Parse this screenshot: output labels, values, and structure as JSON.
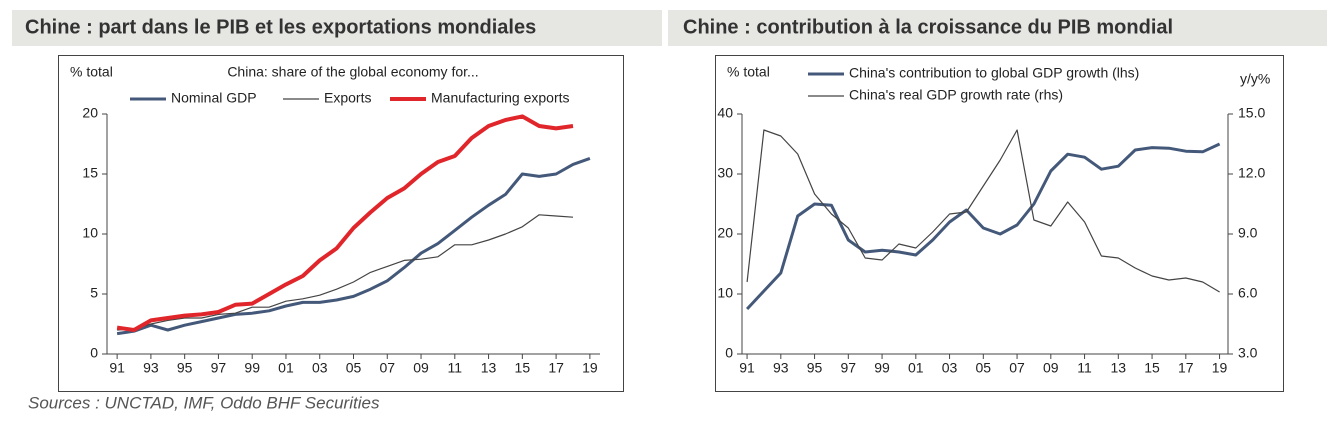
{
  "chart_data": [
    {
      "type": "line",
      "title": "Chine : part dans le PIB et les exportations mondiales",
      "subtitle": "China: share of the global economy for...",
      "y_label": "% total",
      "x": [
        1991,
        1992,
        1993,
        1994,
        1995,
        1996,
        1997,
        1998,
        1999,
        2000,
        2001,
        2002,
        2003,
        2004,
        2005,
        2006,
        2007,
        2008,
        2009,
        2010,
        2011,
        2012,
        2013,
        2014,
        2015,
        2016,
        2017,
        2018,
        2019
      ],
      "xlim": [
        1990.4,
        2019.6
      ],
      "xticks": [
        {
          "value": 1991,
          "label": "91"
        },
        {
          "value": 1993,
          "label": "93"
        },
        {
          "value": 1995,
          "label": "95"
        },
        {
          "value": 1997,
          "label": "97"
        },
        {
          "value": 1999,
          "label": "99"
        },
        {
          "value": 2001,
          "label": "01"
        },
        {
          "value": 2003,
          "label": "03"
        },
        {
          "value": 2005,
          "label": "05"
        },
        {
          "value": 2007,
          "label": "07"
        },
        {
          "value": 2009,
          "label": "09"
        },
        {
          "value": 2011,
          "label": "11"
        },
        {
          "value": 2013,
          "label": "13"
        },
        {
          "value": 2015,
          "label": "15"
        },
        {
          "value": 2017,
          "label": "17"
        },
        {
          "value": 2019,
          "label": "19"
        }
      ],
      "ylim": [
        0,
        20
      ],
      "yticks": [
        0,
        5,
        10,
        15,
        20
      ],
      "series": [
        {
          "name": "Nominal GDP",
          "color": "#44597a",
          "width": 3,
          "values": [
            1.7,
            1.9,
            2.4,
            2.0,
            2.4,
            2.7,
            3.0,
            3.3,
            3.4,
            3.6,
            4.0,
            4.3,
            4.3,
            4.5,
            4.8,
            5.4,
            6.1,
            7.2,
            8.4,
            9.2,
            10.3,
            11.4,
            12.4,
            13.3,
            15.0,
            14.8,
            15.0,
            15.8,
            16.3
          ]
        },
        {
          "name": "Exports",
          "color": "#444444",
          "width": 1.2,
          "values": [
            2.0,
            2.1,
            2.5,
            2.8,
            3.0,
            3.0,
            3.3,
            3.4,
            3.9,
            3.9,
            4.4,
            4.6,
            4.9,
            5.4,
            6.0,
            6.8,
            7.3,
            7.8,
            7.9,
            8.1,
            9.1,
            9.1,
            9.5,
            10.0,
            10.6,
            11.6,
            11.5,
            11.4,
            null
          ]
        },
        {
          "name": "Manufacturing exports",
          "color": "#e0262b",
          "width": 4,
          "values": [
            2.2,
            2.0,
            2.8,
            3.0,
            3.2,
            3.3,
            3.5,
            4.1,
            4.2,
            5.0,
            5.8,
            6.5,
            7.8,
            8.8,
            10.5,
            11.8,
            13.0,
            13.8,
            15.0,
            16.0,
            16.5,
            18.0,
            19.0,
            19.5,
            19.8,
            19.0,
            18.8,
            19.0,
            null
          ]
        }
      ]
    },
    {
      "type": "line",
      "title": "Chine : contribution à la croissance du PIB mondial",
      "y_label": "% total",
      "y2_label": "y/y%",
      "x": [
        1991,
        1992,
        1993,
        1994,
        1995,
        1996,
        1997,
        1998,
        1999,
        2000,
        2001,
        2002,
        2003,
        2004,
        2005,
        2006,
        2007,
        2008,
        2009,
        2010,
        2011,
        2012,
        2013,
        2014,
        2015,
        2016,
        2017,
        2018,
        2019
      ],
      "xlim": [
        1990.7,
        2019.5
      ],
      "xticks": [
        {
          "value": 1991,
          "label": "91"
        },
        {
          "value": 1993,
          "label": "93"
        },
        {
          "value": 1995,
          "label": "95"
        },
        {
          "value": 1997,
          "label": "97"
        },
        {
          "value": 1999,
          "label": "99"
        },
        {
          "value": 2001,
          "label": "01"
        },
        {
          "value": 2003,
          "label": "03"
        },
        {
          "value": 2005,
          "label": "05"
        },
        {
          "value": 2007,
          "label": "07"
        },
        {
          "value": 2009,
          "label": "09"
        },
        {
          "value": 2011,
          "label": "11"
        },
        {
          "value": 2013,
          "label": "13"
        },
        {
          "value": 2015,
          "label": "15"
        },
        {
          "value": 2017,
          "label": "17"
        },
        {
          "value": 2019,
          "label": "19"
        }
      ],
      "ylim": [
        0,
        40
      ],
      "yticks": [
        0,
        10,
        20,
        30,
        40
      ],
      "y2lim": [
        3,
        15
      ],
      "y2ticks": [
        {
          "value": 3,
          "label": "3.0"
        },
        {
          "value": 6,
          "label": "6.0"
        },
        {
          "value": 9,
          "label": "9.0"
        },
        {
          "value": 12,
          "label": "12.0"
        },
        {
          "value": 15,
          "label": "15.0"
        }
      ],
      "series": [
        {
          "name": "China's contribution to global GDP growth (lhs)",
          "color": "#44597a",
          "width": 3,
          "values": [
            7.5,
            10.5,
            13.5,
            23,
            25,
            24.8,
            19,
            17,
            17.3,
            17,
            16.5,
            19,
            22,
            24,
            21,
            20,
            21.5,
            25,
            30.5,
            33.3,
            32.8,
            30.8,
            31.3,
            34,
            34.4,
            34.3,
            33.8,
            33.7,
            35
          ]
        },
        {
          "name": "China's real GDP growth rate (rhs)",
          "color": "#444444",
          "width": 1.2,
          "axis": "y2",
          "values": [
            6.6,
            14.2,
            13.9,
            13.0,
            11.0,
            10.0,
            9.3,
            7.8,
            7.7,
            8.5,
            8.3,
            9.1,
            10.0,
            10.1,
            11.4,
            12.7,
            14.2,
            9.7,
            9.4,
            10.6,
            9.6,
            7.9,
            7.8,
            7.3,
            6.9,
            6.7,
            6.8,
            6.6,
            6.1
          ]
        }
      ]
    }
  ],
  "source": "Sources : UNCTAD, IMF, Oddo BHF Securities"
}
